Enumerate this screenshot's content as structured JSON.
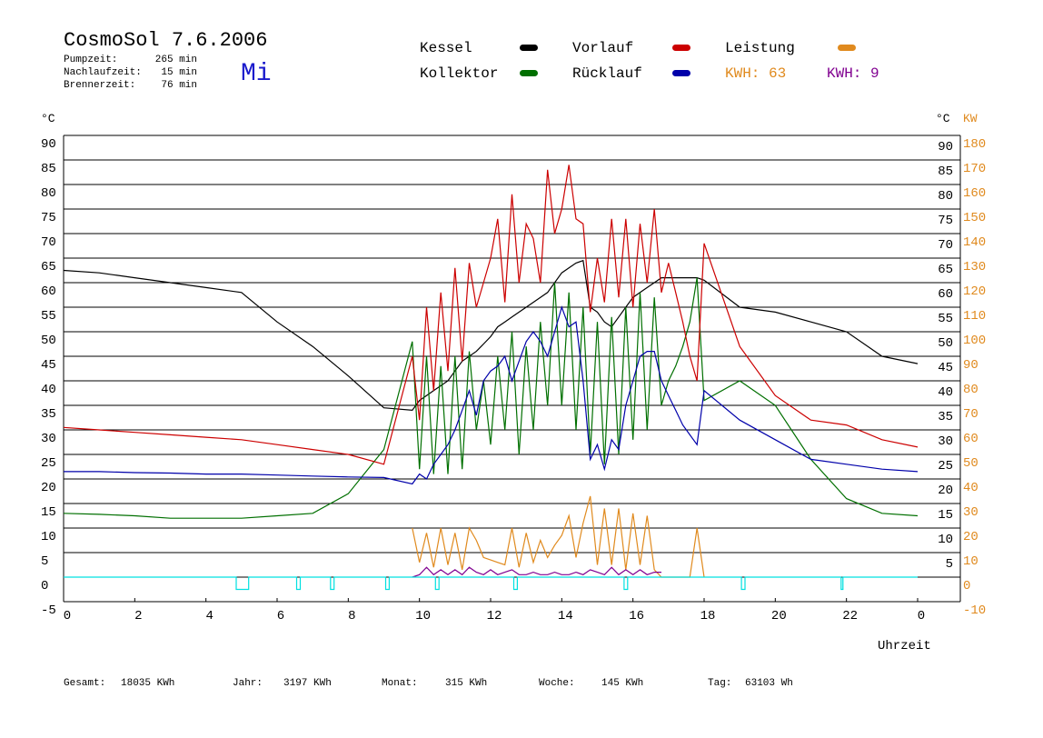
{
  "chart_data": {
    "type": "line",
    "title": "CosmoSol 7.6.2006",
    "info": [
      {
        "label": "Pumpzeit:",
        "value": "265 min"
      },
      {
        "label": "Nachlaufzeit:",
        "value": "15 min"
      },
      {
        "label": "Brennerzeit:",
        "value": "76 min"
      }
    ],
    "weekday": "Mi",
    "y_unit": "°C",
    "y_unit_right": "°C",
    "y2_unit": "KW",
    "x_label": "Uhrzeit",
    "kwh_labels": [
      {
        "text": "KWH: 63",
        "color": "#e08a1e"
      },
      {
        "text": "KWH: 9",
        "color": "#800090"
      }
    ],
    "footer": [
      {
        "label": "Gesamt:",
        "value": "18035 KWh"
      },
      {
        "label": "Jahr:",
        "value": "3197 KWh"
      },
      {
        "label": "Monat:",
        "value": "315 KWh"
      },
      {
        "label": "Woche:",
        "value": "145 KWh"
      },
      {
        "label": "Tag:",
        "value": "63103 Wh"
      }
    ],
    "xlim": [
      0,
      25.2
    ],
    "xticks": [
      0,
      2,
      4,
      6,
      8,
      10,
      12,
      14,
      16,
      18,
      20,
      22,
      {
        "value": 24,
        "label": "0"
      }
    ],
    "ylim": [
      -5,
      90
    ],
    "yticks": [
      -5,
      0,
      5,
      10,
      15,
      20,
      25,
      30,
      35,
      40,
      45,
      50,
      55,
      60,
      65,
      70,
      75,
      80,
      85,
      90
    ],
    "yticks_right": [
      5,
      10,
      15,
      20,
      25,
      30,
      35,
      40,
      45,
      50,
      55,
      60,
      65,
      70,
      75,
      80,
      85,
      90
    ],
    "y2lim": [
      -10,
      180
    ],
    "y2ticks": [
      -10,
      0,
      10,
      20,
      30,
      40,
      50,
      60,
      70,
      80,
      90,
      100,
      110,
      120,
      130,
      140,
      150,
      160,
      170,
      180
    ],
    "grid": true,
    "x": [
      0,
      1,
      2,
      3,
      4,
      5,
      6,
      7,
      8,
      9,
      9.8,
      10,
      10.2,
      10.4,
      10.6,
      10.8,
      11,
      11.2,
      11.4,
      11.6,
      11.8,
      12,
      12.2,
      12.4,
      12.6,
      12.8,
      13,
      13.2,
      13.4,
      13.6,
      13.8,
      14,
      14.2,
      14.4,
      14.6,
      14.8,
      15,
      15.2,
      15.4,
      15.6,
      15.8,
      16,
      16.2,
      16.4,
      16.6,
      16.8,
      17,
      17.2,
      17.4,
      17.6,
      17.8,
      18,
      19,
      20,
      21,
      22,
      23,
      24
    ],
    "series": [
      {
        "name": "Kessel",
        "color": "#000000",
        "values": [
          62.5,
          62,
          61,
          60,
          59,
          58,
          52,
          47,
          41,
          34.5,
          34,
          36,
          37,
          38,
          39,
          40,
          42,
          44,
          45,
          46,
          47.5,
          49,
          51,
          52,
          53,
          54,
          55,
          56,
          57,
          58,
          60,
          62,
          63,
          64,
          64.5,
          55,
          54,
          52,
          51,
          53,
          55,
          57,
          58,
          59,
          60,
          61,
          61,
          61,
          61,
          61,
          61,
          60.5,
          55,
          54,
          52,
          50,
          45,
          43.5
        ]
      },
      {
        "name": "Kollektor",
        "color": "#006f00",
        "values": [
          13,
          12.8,
          12.5,
          12,
          12,
          12,
          12.5,
          13,
          17,
          26,
          48,
          22,
          45,
          21,
          43,
          21,
          45,
          22,
          46,
          30,
          40,
          27,
          45,
          30,
          50,
          25,
          47,
          30,
          52,
          35,
          60,
          35,
          58,
          30,
          55,
          25,
          52,
          23,
          53,
          25,
          55,
          28,
          58,
          30,
          57,
          35,
          40,
          43,
          47,
          52,
          61,
          36,
          40,
          35,
          24,
          16,
          13,
          12.5
        ]
      },
      {
        "name": "Vorlauf",
        "color": "#cc0000",
        "values": [
          30.5,
          30,
          29.5,
          29,
          28.5,
          28,
          27,
          26,
          25,
          23,
          45,
          32,
          55,
          38,
          58,
          42,
          63,
          44,
          64,
          55,
          60,
          65,
          73,
          56,
          78,
          60,
          72,
          69,
          60,
          83,
          70,
          75,
          84,
          73,
          72,
          54,
          65,
          56,
          73,
          57,
          73,
          55,
          72,
          60,
          75,
          58,
          64,
          58,
          52,
          45,
          40,
          68,
          47,
          37,
          32,
          31,
          28,
          26.5
        ]
      },
      {
        "name": "Rücklauf",
        "color": "#0000aa",
        "values": [
          21.5,
          21.5,
          21.3,
          21.2,
          21,
          21,
          20.8,
          20.6,
          20.4,
          20.3,
          19,
          21,
          20,
          23,
          25,
          27,
          30,
          34,
          38,
          33,
          40,
          42,
          43,
          45,
          40,
          44,
          48,
          50,
          48,
          45,
          50,
          55,
          51,
          52,
          40,
          24,
          27,
          22,
          28,
          26,
          35,
          40,
          45,
          46,
          46,
          40,
          37,
          34,
          31,
          29,
          27,
          38,
          32,
          28,
          24,
          23,
          22,
          21.5
        ]
      },
      {
        "name": "Leistung",
        "color": "#e08a1e",
        "axis": "y2",
        "values": [
          null,
          null,
          null,
          null,
          null,
          null,
          null,
          null,
          null,
          null,
          20,
          6,
          18,
          4,
          20,
          5,
          18,
          3,
          20,
          15,
          8,
          7,
          6,
          5,
          20,
          4,
          18,
          6,
          15,
          8,
          13,
          17,
          25,
          8,
          22,
          33,
          5,
          28,
          5,
          28,
          3,
          26,
          5,
          25,
          3,
          0,
          0,
          0,
          0,
          0,
          20,
          0,
          null,
          null,
          null,
          null,
          null,
          null
        ]
      },
      {
        "color": "#800090",
        "axis": "y2",
        "values": [
          null,
          null,
          null,
          null,
          null,
          null,
          null,
          null,
          null,
          null,
          0,
          1,
          4,
          1,
          3,
          1,
          3,
          1,
          4,
          2,
          1,
          3,
          1,
          2,
          3,
          1,
          1,
          2,
          1,
          1,
          2,
          1,
          1,
          2,
          1,
          3,
          2,
          1,
          4,
          1,
          3,
          1,
          3,
          1,
          2,
          2,
          null,
          null,
          null,
          null,
          null,
          null,
          null,
          null,
          null,
          null,
          null,
          null
        ]
      },
      {
        "color": "#00e0e0",
        "x": [
          0,
          4.85,
          4.85,
          5.2,
          5.2,
          6.55,
          6.55,
          6.65,
          6.65,
          7.5,
          7.5,
          7.6,
          7.6,
          9.05,
          9.05,
          9.15,
          9.15,
          10.45,
          10.45,
          10.55,
          10.55,
          12.65,
          12.65,
          12.75,
          12.75,
          15.75,
          15.75,
          15.85,
          15.85,
          19.05,
          19.05,
          19.15,
          19.15,
          21.85,
          21.85,
          21.9,
          21.9,
          24
        ],
        "values": [
          0,
          0,
          -2.5,
          -2.5,
          0,
          0,
          -2.5,
          -2.5,
          0,
          0,
          -2.5,
          -2.5,
          0,
          0,
          -2.5,
          -2.5,
          0,
          0,
          -2.5,
          -2.5,
          0,
          0,
          -2.5,
          -2.5,
          0,
          0,
          -2.5,
          -2.5,
          0,
          0,
          -2.5,
          -2.5,
          0,
          0,
          -2.5,
          -2.5,
          0,
          0
        ]
      }
    ]
  }
}
